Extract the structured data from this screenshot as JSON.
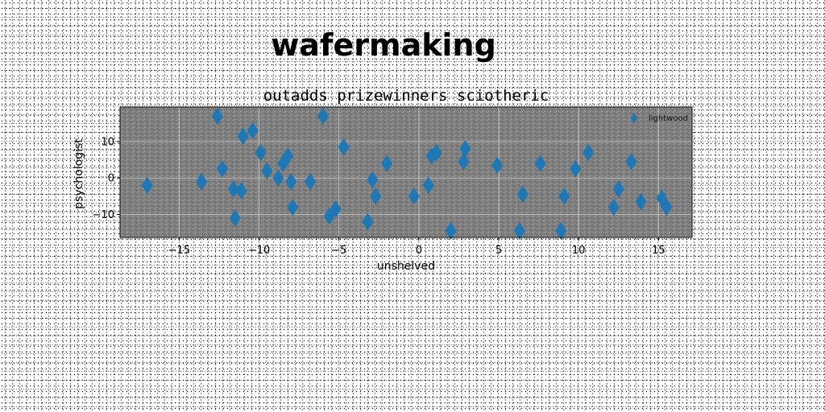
{
  "page": {
    "title": "wafermaking"
  },
  "chart_data": {
    "type": "scatter",
    "title": "outadds prizewinners sciotheric",
    "xlabel": "unshelved",
    "ylabel": "psychologist",
    "xlim": [
      -18.7,
      17.1
    ],
    "ylim": [
      -16.3,
      19.5
    ],
    "xticks": [
      -15,
      -10,
      -5,
      0,
      5,
      10,
      15
    ],
    "xtick_labels": [
      "−15",
      "−10",
      "−5",
      "0",
      "5",
      "10",
      "15"
    ],
    "yticks": [
      -10,
      0,
      10
    ],
    "ytick_labels": [
      "−10",
      "0",
      "10"
    ],
    "grid": true,
    "legend_position": "top-right",
    "series": [
      {
        "name": "lightwood",
        "color": "#1f77b4",
        "marker": "diamond",
        "points": [
          [
            -17,
            -2
          ],
          [
            -13.6,
            -1
          ],
          [
            -12.6,
            17
          ],
          [
            -12.3,
            2.5
          ],
          [
            -11.6,
            -3
          ],
          [
            -11.5,
            -11
          ],
          [
            -11.1,
            -3.5
          ],
          [
            -11,
            11.5
          ],
          [
            -10.4,
            13
          ],
          [
            -9.9,
            7
          ],
          [
            -9.5,
            2
          ],
          [
            -8.8,
            0
          ],
          [
            -8.5,
            4
          ],
          [
            -8.2,
            6
          ],
          [
            -8,
            -1
          ],
          [
            -7.9,
            -8
          ],
          [
            -6.8,
            -1
          ],
          [
            -6,
            17
          ],
          [
            -5.6,
            -10.5
          ],
          [
            -5.2,
            -8.5
          ],
          [
            -4.7,
            8.5
          ],
          [
            -3.2,
            -12
          ],
          [
            -2.9,
            -0.5
          ],
          [
            -2.7,
            -5
          ],
          [
            -2,
            4
          ],
          [
            -0.3,
            -5
          ],
          [
            0.6,
            -2
          ],
          [
            0.8,
            6
          ],
          [
            1.1,
            7
          ],
          [
            2,
            -14.5
          ],
          [
            2.8,
            4.5
          ],
          [
            2.9,
            8
          ],
          [
            4.9,
            3.5
          ],
          [
            6.3,
            -14.5
          ],
          [
            6.5,
            -4.5
          ],
          [
            7.6,
            4
          ],
          [
            8.9,
            -14.5
          ],
          [
            9.1,
            -5
          ],
          [
            9.8,
            2.5
          ],
          [
            10.6,
            7
          ],
          [
            12.2,
            -8
          ],
          [
            12.5,
            -3
          ],
          [
            13.3,
            4.5
          ],
          [
            13.9,
            -6.5
          ],
          [
            15.2,
            -5.5
          ],
          [
            15.5,
            -8
          ]
        ]
      }
    ]
  }
}
